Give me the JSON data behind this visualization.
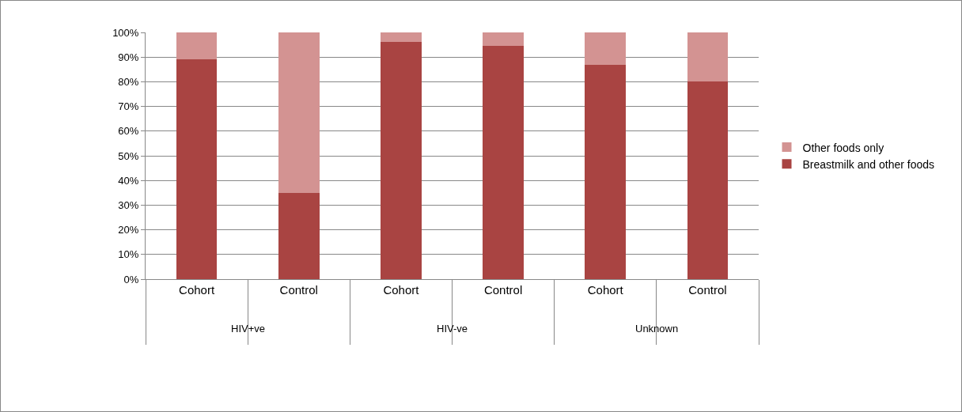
{
  "chart_data": {
    "type": "bar",
    "stacked": true,
    "categories": [
      "Cohort",
      "Control",
      "Cohort",
      "Control",
      "Cohort",
      "Control"
    ],
    "series": [
      {
        "name": "Breastmilk and other foods",
        "color": "#a94442",
        "values": [
          89,
          35,
          96,
          94.5,
          87,
          80
        ]
      },
      {
        "name": "Other foods only",
        "color": "#d39392",
        "values": [
          11,
          65,
          4,
          5.5,
          13,
          20
        ]
      }
    ],
    "annotations": [
      "HIV+ve",
      "HIV-ve",
      "Unknown"
    ],
    "ylim": [
      0,
      100
    ],
    "yticks": [
      {
        "value": 0,
        "label": "0%"
      },
      {
        "value": 10,
        "label": "10%"
      },
      {
        "value": 20,
        "label": "20%"
      },
      {
        "value": 30,
        "label": "30%"
      },
      {
        "value": 40,
        "label": "40%"
      },
      {
        "value": 50,
        "label": "50%"
      },
      {
        "value": 60,
        "label": "60%"
      },
      {
        "value": 70,
        "label": "70%"
      },
      {
        "value": 80,
        "label": "80%"
      },
      {
        "value": 90,
        "label": "90%"
      },
      {
        "value": 100,
        "label": "100%"
      }
    ],
    "grid": "y",
    "legend": "right"
  }
}
